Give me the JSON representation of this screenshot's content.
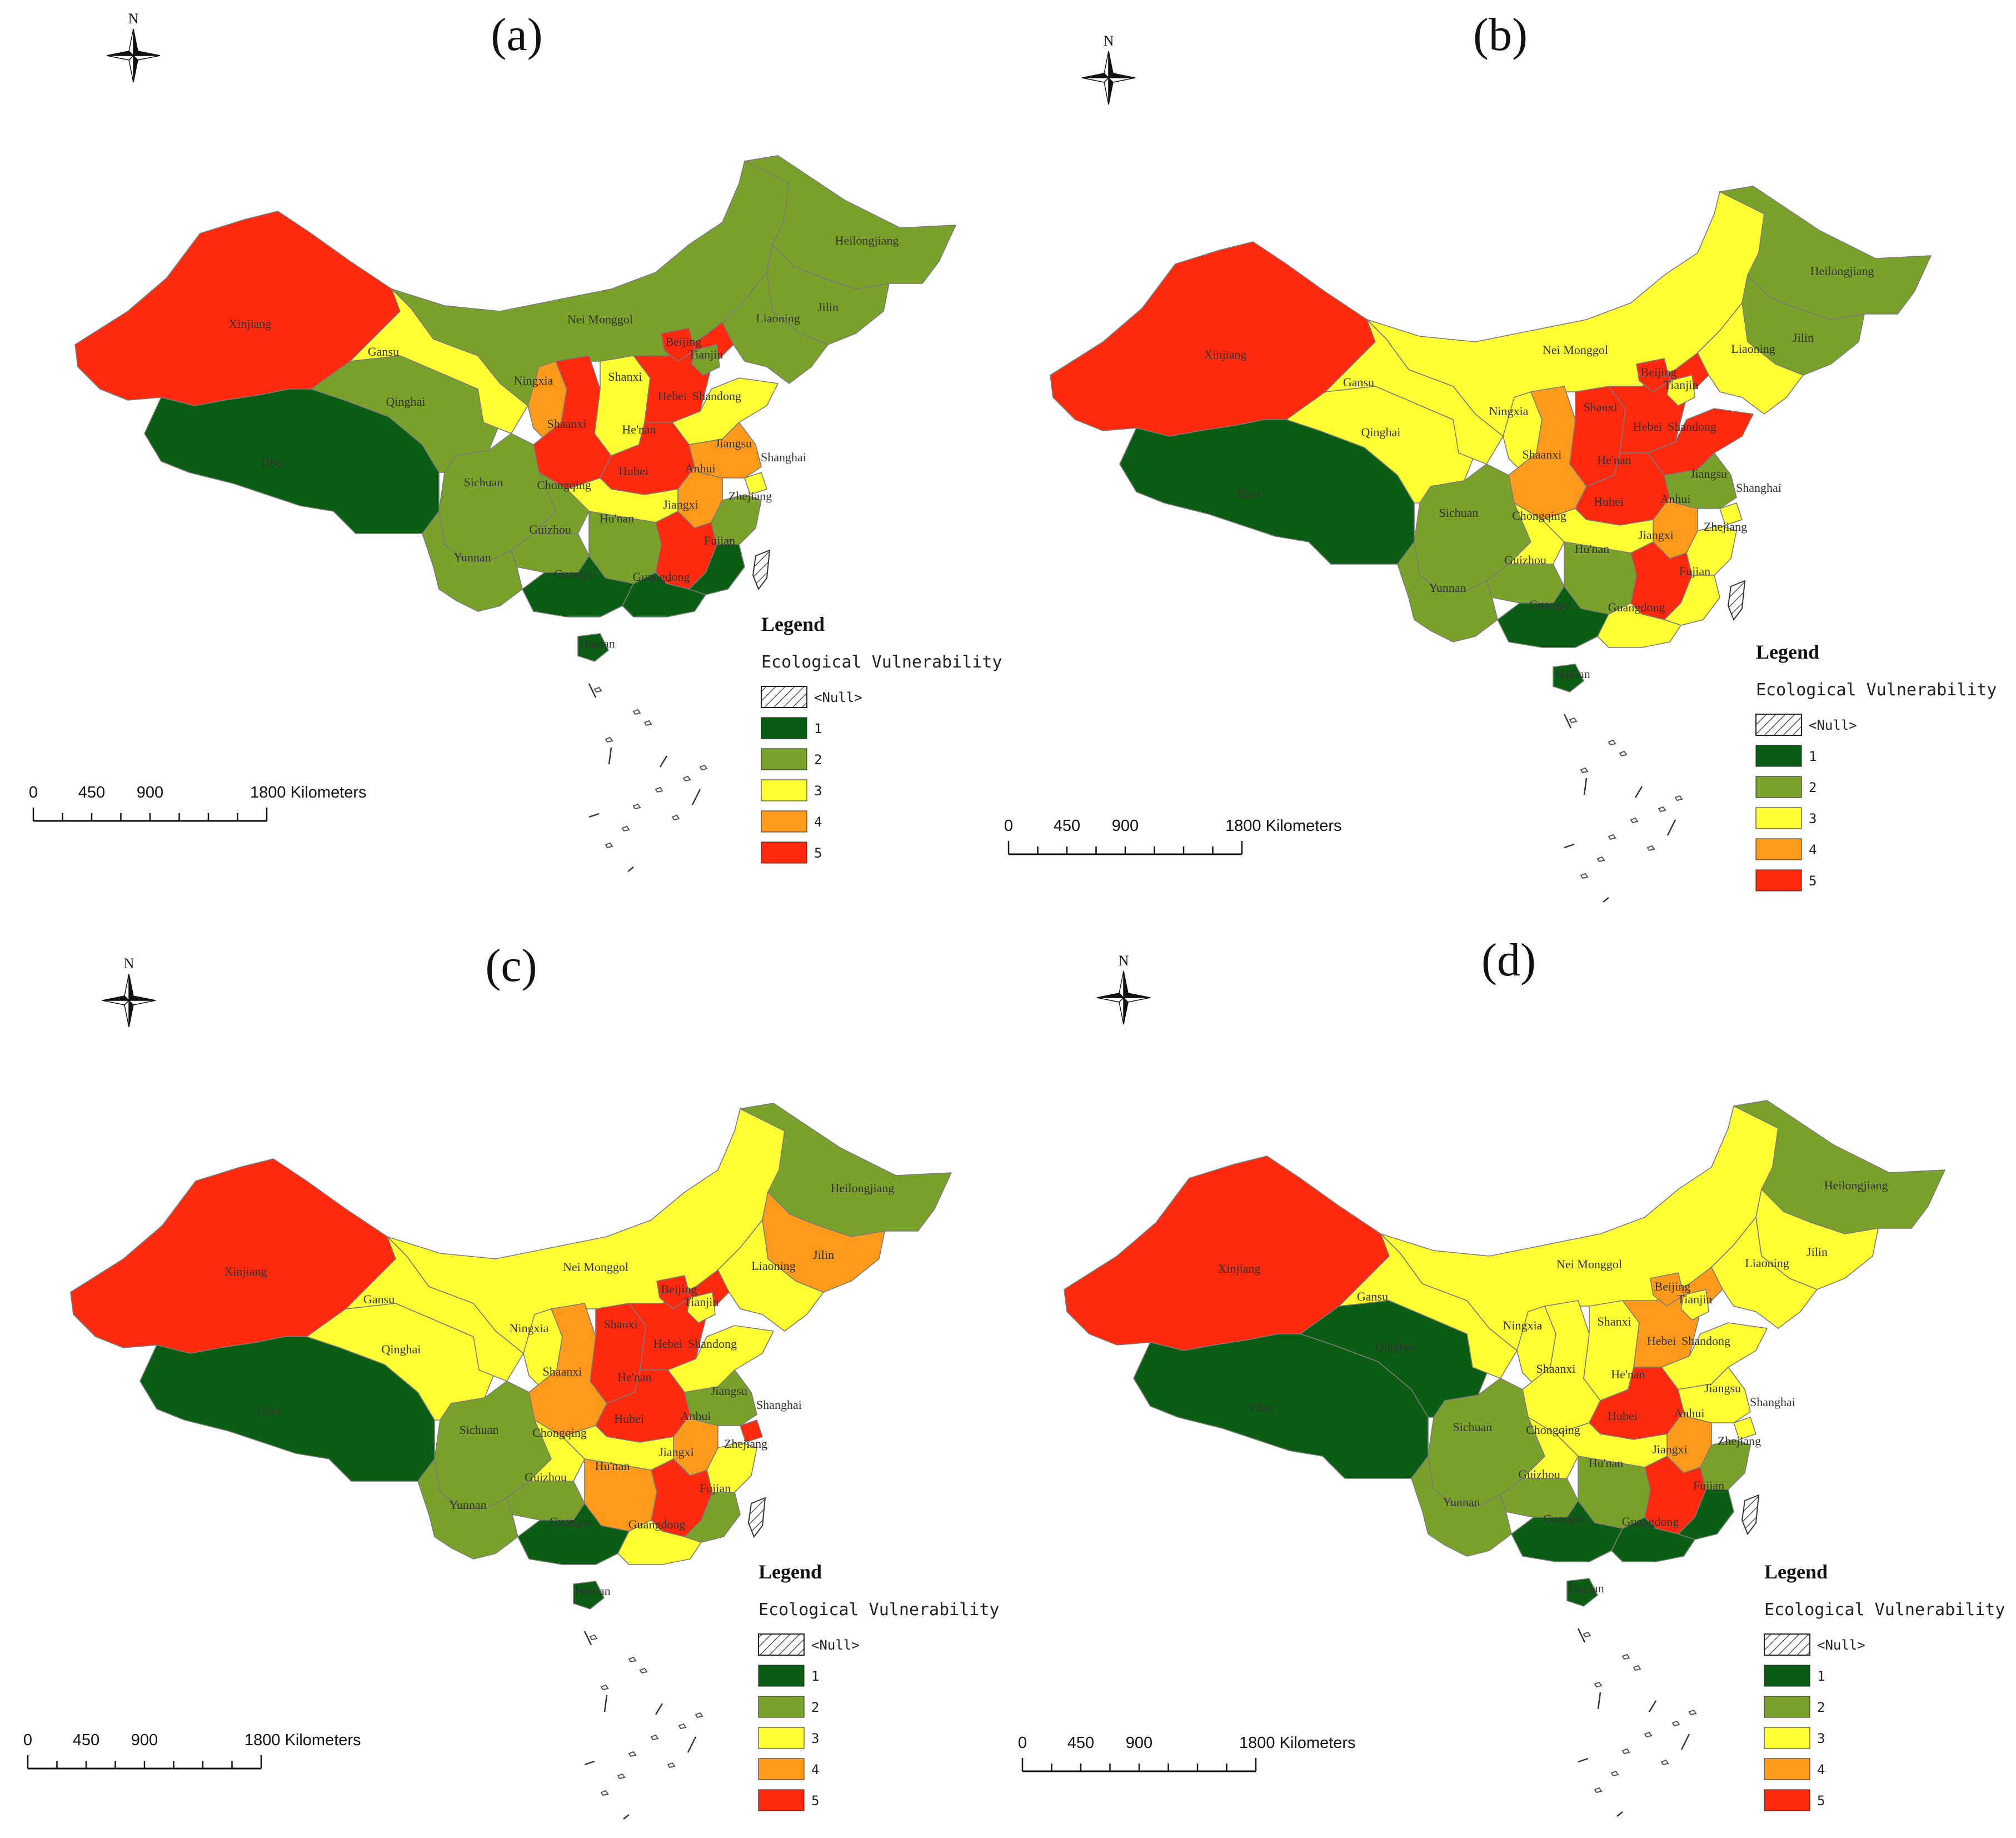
{
  "colors": {
    "1": "#0b5d14",
    "2": "#7aa12a",
    "3": "#ffff33",
    "4": "#ff9a1a",
    "5": "#ff2a0d",
    "outline": "#7a7a7a"
  },
  "panels": [
    {
      "title": "(a)",
      "classes": {
        "Xinjiang": 5,
        "Tibet": 1,
        "Qinghai": 2,
        "Gansu": 3,
        "Nei Monggol": 2,
        "Heilongjiang": 2,
        "Jilin": 2,
        "Liaoning": 2,
        "Ningxia": 4,
        "Shaanxi": 5,
        "Shanxi": 3,
        "Hebei": 5,
        "Beijing": 5,
        "Tianjin": 2,
        "Shandong": 3,
        "He'nan": 5,
        "Jiangsu": 4,
        "Anhui": 4,
        "Shanghai": 3,
        "Hubei": 3,
        "Sichuan": 2,
        "Chongqing": 2,
        "Guizhou": 2,
        "Yunnan": 2,
        "Hu'nan": 2,
        "Jiangxi": 5,
        "Zhejiang": 2,
        "Fujian": 1,
        "Guangxi": 1,
        "Guangdong": 1,
        "Hainan": 1
      }
    },
    {
      "title": "(b)",
      "classes": {
        "Xinjiang": 5,
        "Tibet": 1,
        "Qinghai": 3,
        "Gansu": 3,
        "Nei Monggol": 3,
        "Heilongjiang": 2,
        "Jilin": 2,
        "Liaoning": 3,
        "Ningxia": 3,
        "Shaanxi": 4,
        "Shanxi": 5,
        "Hebei": 5,
        "Beijing": 5,
        "Tianjin": 3,
        "Shandong": 5,
        "He'nan": 5,
        "Jiangsu": 2,
        "Anhui": 4,
        "Shanghai": 3,
        "Hubei": 3,
        "Sichuan": 2,
        "Chongqing": 3,
        "Guizhou": 2,
        "Yunnan": 2,
        "Hu'nan": 2,
        "Jiangxi": 5,
        "Zhejiang": 3,
        "Fujian": 3,
        "Guangxi": 1,
        "Guangdong": 3,
        "Hainan": 1
      }
    },
    {
      "title": "(c)",
      "classes": {
        "Xinjiang": 5,
        "Tibet": 1,
        "Qinghai": 3,
        "Gansu": 3,
        "Nei Monggol": 3,
        "Heilongjiang": 2,
        "Jilin": 4,
        "Liaoning": 3,
        "Ningxia": 3,
        "Shaanxi": 4,
        "Shanxi": 5,
        "Hebei": 5,
        "Beijing": 5,
        "Tianjin": 3,
        "Shandong": 3,
        "He'nan": 5,
        "Jiangsu": 2,
        "Anhui": 4,
        "Shanghai": 5,
        "Hubei": 3,
        "Sichuan": 2,
        "Chongqing": 3,
        "Guizhou": 2,
        "Yunnan": 2,
        "Hu'nan": 4,
        "Jiangxi": 5,
        "Zhejiang": 3,
        "Fujian": 2,
        "Guangxi": 1,
        "Guangdong": 3,
        "Hainan": 1
      }
    },
    {
      "title": "(d)",
      "classes": {
        "Xinjiang": 5,
        "Tibet": 1,
        "Qinghai": 1,
        "Gansu": 3,
        "Nei Monggol": 3,
        "Heilongjiang": 2,
        "Jilin": 3,
        "Liaoning": 3,
        "Ningxia": 3,
        "Shaanxi": 3,
        "Shanxi": 3,
        "Hebei": 4,
        "Beijing": 4,
        "Tianjin": 3,
        "Shandong": 3,
        "He'nan": 5,
        "Jiangsu": 3,
        "Anhui": 4,
        "Shanghai": 3,
        "Hubei": 3,
        "Sichuan": 2,
        "Chongqing": 3,
        "Guizhou": 2,
        "Yunnan": 2,
        "Hu'nan": 2,
        "Jiangxi": 5,
        "Zhejiang": 2,
        "Fujian": 1,
        "Guangxi": 1,
        "Guangdong": 1,
        "Hainan": 1
      }
    }
  ],
  "province_labels": [
    "Xinjiang",
    "Tibet",
    "Qinghai",
    "Gansu",
    "Nei Monggol",
    "Heilongjiang",
    "Jilin",
    "Liaoning",
    "Ningxia",
    "Shaanxi",
    "Shanxi",
    "Hebei",
    "Beijing",
    "Tianjin",
    "Shandong",
    "He'nan",
    "Jiangsu",
    "Anhui",
    "Shanghai",
    "Hubei",
    "Sichuan",
    "Chongqing",
    "Guizhou",
    "Yunnan",
    "Hu'nan",
    "Jiangxi",
    "Zhejiang",
    "Fujian",
    "Guangxi",
    "Guangdong",
    "Hainan"
  ],
  "legend": {
    "title": "Legend",
    "subtitle": "Ecological Vulnerability",
    "null_label": "<Null>",
    "class_labels": [
      "1",
      "2",
      "3",
      "4",
      "5"
    ]
  },
  "scale": {
    "ticks": [
      "0",
      "450",
      "900"
    ],
    "end_label": "1800 Kilometers"
  },
  "north": "N"
}
